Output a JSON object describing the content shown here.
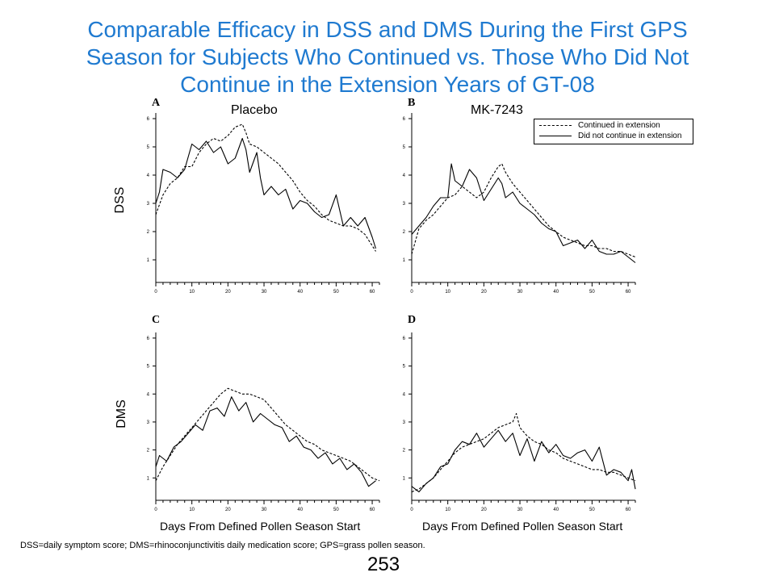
{
  "title_lines": [
    "Comparable Efficacy in DSS and DMS During the First GPS",
    "Season for Subjects Who Continued vs. Those Who Did Not",
    "Continue in the Extension Years of GT-08"
  ],
  "footnote": "DSS=daily symptom score; DMS=rhinoconjunctivitis daily medication score; GPS=grass pollen season.",
  "page_number": "253",
  "column_titles": [
    "Placebo",
    "MK-7243"
  ],
  "row_labels": [
    "DSS",
    "DMS"
  ],
  "xlabel": "Days From Defined Pollen Season Start",
  "legend": {
    "continued": "Continued in extension",
    "not_continued": "Did not continue in extension"
  },
  "colors": {
    "title": "#1f7ad0",
    "line": "#000000"
  },
  "chart_data": [
    {
      "type": "line",
      "panel": "A",
      "title": "Placebo",
      "ylabel": "DSS",
      "xlabel": "Days From Defined Pollen Season Start",
      "xlim": [
        0,
        62
      ],
      "ylim": [
        0.2,
        6.2
      ],
      "xticks": [
        0,
        10,
        20,
        30,
        40,
        50,
        60
      ],
      "yticks": [
        1,
        2,
        3,
        4,
        5,
        6
      ],
      "series": [
        {
          "name": "Continued in extension",
          "style": "dashed",
          "x": [
            0,
            2,
            4,
            6,
            8,
            10,
            12,
            14,
            16,
            18,
            20,
            22,
            24,
            25,
            26,
            28,
            30,
            32,
            34,
            36,
            38,
            40,
            42,
            44,
            46,
            48,
            50,
            52,
            54,
            56,
            58,
            60,
            61
          ],
          "y": [
            2.6,
            3.3,
            3.7,
            3.9,
            4.3,
            4.3,
            4.8,
            5.1,
            5.3,
            5.2,
            5.4,
            5.7,
            5.8,
            5.5,
            5.1,
            5.0,
            4.8,
            4.6,
            4.4,
            4.1,
            3.8,
            3.4,
            3.1,
            2.9,
            2.6,
            2.4,
            2.3,
            2.2,
            2.2,
            2.1,
            1.9,
            1.5,
            1.3
          ]
        },
        {
          "name": "Did not continue in extension",
          "style": "solid",
          "x": [
            0,
            1,
            2,
            4,
            6,
            8,
            10,
            12,
            14,
            16,
            18,
            20,
            22,
            24,
            25,
            26,
            28,
            29,
            30,
            32,
            34,
            36,
            38,
            40,
            42,
            44,
            46,
            48,
            50,
            52,
            54,
            56,
            58,
            60,
            61
          ],
          "y": [
            3.0,
            3.4,
            4.2,
            4.1,
            3.9,
            4.2,
            5.1,
            4.9,
            5.2,
            4.8,
            5.0,
            4.4,
            4.6,
            5.3,
            4.9,
            4.1,
            4.8,
            3.9,
            3.3,
            3.6,
            3.3,
            3.5,
            2.8,
            3.1,
            3.0,
            2.7,
            2.5,
            2.6,
            3.3,
            2.2,
            2.5,
            2.2,
            2.5,
            1.8,
            1.4
          ]
        }
      ]
    },
    {
      "type": "line",
      "panel": "B",
      "title": "MK-7243",
      "ylabel": "",
      "xlabel": "Days From Defined Pollen Season Start",
      "xlim": [
        0,
        62
      ],
      "ylim": [
        0.2,
        6.2
      ],
      "xticks": [
        0,
        10,
        20,
        30,
        40,
        50,
        60
      ],
      "yticks": [
        1,
        2,
        3,
        4,
        5,
        6
      ],
      "series": [
        {
          "name": "Continued in extension",
          "style": "dashed",
          "x": [
            0,
            2,
            4,
            6,
            8,
            10,
            12,
            14,
            16,
            18,
            20,
            22,
            24,
            25,
            26,
            28,
            30,
            32,
            34,
            36,
            38,
            40,
            42,
            44,
            46,
            48,
            50,
            52,
            54,
            56,
            58,
            60,
            62
          ],
          "y": [
            1.2,
            2.1,
            2.4,
            2.6,
            2.9,
            3.2,
            3.3,
            3.6,
            3.4,
            3.2,
            3.4,
            3.9,
            4.3,
            4.4,
            4.1,
            3.7,
            3.4,
            3.1,
            2.8,
            2.5,
            2.2,
            2.0,
            1.8,
            1.7,
            1.6,
            1.5,
            1.5,
            1.4,
            1.4,
            1.3,
            1.3,
            1.2,
            1.1
          ]
        },
        {
          "name": "Did not continue in extension",
          "style": "solid",
          "x": [
            0,
            2,
            4,
            6,
            8,
            10,
            11,
            12,
            14,
            16,
            18,
            20,
            22,
            24,
            25,
            26,
            28,
            30,
            32,
            34,
            36,
            38,
            40,
            42,
            44,
            46,
            48,
            50,
            52,
            54,
            56,
            58,
            60,
            62
          ],
          "y": [
            1.9,
            2.2,
            2.5,
            2.9,
            3.2,
            3.2,
            4.4,
            3.8,
            3.6,
            4.2,
            3.9,
            3.1,
            3.5,
            3.9,
            3.7,
            3.2,
            3.4,
            3.0,
            2.8,
            2.6,
            2.3,
            2.1,
            2.0,
            1.5,
            1.6,
            1.7,
            1.4,
            1.7,
            1.3,
            1.2,
            1.2,
            1.3,
            1.1,
            0.9
          ]
        }
      ]
    },
    {
      "type": "line",
      "panel": "C",
      "title": "",
      "ylabel": "DMS",
      "xlabel": "Days From Defined Pollen Season Start",
      "xlim": [
        0,
        62
      ],
      "ylim": [
        0.2,
        6.2
      ],
      "xticks": [
        0,
        10,
        20,
        30,
        40,
        50,
        60
      ],
      "yticks": [
        1,
        2,
        3,
        4,
        5,
        6
      ],
      "series": [
        {
          "name": "Continued in extension",
          "style": "dashed",
          "x": [
            0,
            2,
            4,
            6,
            8,
            10,
            12,
            14,
            16,
            18,
            20,
            22,
            24,
            26,
            28,
            30,
            32,
            34,
            36,
            38,
            40,
            42,
            44,
            46,
            48,
            50,
            52,
            54,
            56,
            58,
            60,
            62
          ],
          "y": [
            0.9,
            1.4,
            1.8,
            2.2,
            2.5,
            2.8,
            3.1,
            3.4,
            3.7,
            4.0,
            4.2,
            4.1,
            4.0,
            4.0,
            3.9,
            3.8,
            3.5,
            3.2,
            2.9,
            2.7,
            2.5,
            2.3,
            2.2,
            2.0,
            1.9,
            1.8,
            1.7,
            1.6,
            1.4,
            1.2,
            1.0,
            0.9
          ]
        },
        {
          "name": "Did not continue in extension",
          "style": "solid",
          "x": [
            0,
            1,
            3,
            5,
            7,
            9,
            11,
            13,
            15,
            17,
            19,
            21,
            23,
            25,
            27,
            29,
            31,
            33,
            35,
            37,
            39,
            41,
            43,
            45,
            47,
            49,
            51,
            53,
            55,
            57,
            59,
            61
          ],
          "y": [
            1.4,
            1.8,
            1.6,
            2.1,
            2.3,
            2.6,
            2.9,
            2.7,
            3.4,
            3.5,
            3.2,
            3.9,
            3.4,
            3.7,
            3.0,
            3.3,
            3.1,
            2.9,
            2.8,
            2.3,
            2.5,
            2.1,
            2.0,
            1.7,
            1.9,
            1.5,
            1.7,
            1.3,
            1.5,
            1.2,
            0.7,
            0.9
          ]
        }
      ]
    },
    {
      "type": "line",
      "panel": "D",
      "title": "",
      "ylabel": "",
      "xlabel": "Days From Defined Pollen Season Start",
      "xlim": [
        0,
        62
      ],
      "ylim": [
        0.2,
        6.2
      ],
      "xticks": [
        0,
        10,
        20,
        30,
        40,
        50,
        60
      ],
      "yticks": [
        1,
        2,
        3,
        4,
        5,
        6
      ],
      "series": [
        {
          "name": "Continued in extension",
          "style": "dashed",
          "x": [
            0,
            2,
            4,
            6,
            8,
            10,
            12,
            14,
            16,
            18,
            20,
            22,
            24,
            26,
            28,
            29,
            30,
            32,
            34,
            36,
            38,
            40,
            42,
            44,
            46,
            48,
            50,
            52,
            54,
            56,
            58,
            60,
            62
          ],
          "y": [
            0.5,
            0.6,
            0.8,
            1.0,
            1.3,
            1.6,
            1.9,
            2.1,
            2.2,
            2.3,
            2.4,
            2.6,
            2.8,
            2.9,
            3.0,
            3.3,
            2.8,
            2.5,
            2.3,
            2.2,
            2.0,
            1.9,
            1.7,
            1.6,
            1.5,
            1.4,
            1.3,
            1.3,
            1.2,
            1.2,
            1.1,
            1.0,
            0.9
          ]
        },
        {
          "name": "Did not continue in extension",
          "style": "solid",
          "x": [
            0,
            2,
            4,
            6,
            8,
            10,
            12,
            14,
            16,
            18,
            20,
            22,
            24,
            26,
            28,
            30,
            32,
            34,
            36,
            38,
            40,
            42,
            44,
            46,
            48,
            50,
            52,
            54,
            56,
            58,
            60,
            61,
            62
          ],
          "y": [
            0.7,
            0.5,
            0.8,
            1.0,
            1.4,
            1.5,
            2.0,
            2.3,
            2.2,
            2.6,
            2.1,
            2.4,
            2.7,
            2.3,
            2.6,
            1.8,
            2.4,
            1.6,
            2.3,
            1.9,
            2.2,
            1.8,
            1.7,
            1.9,
            2.0,
            1.6,
            2.1,
            1.1,
            1.3,
            1.2,
            0.9,
            1.3,
            0.6
          ]
        }
      ]
    }
  ]
}
